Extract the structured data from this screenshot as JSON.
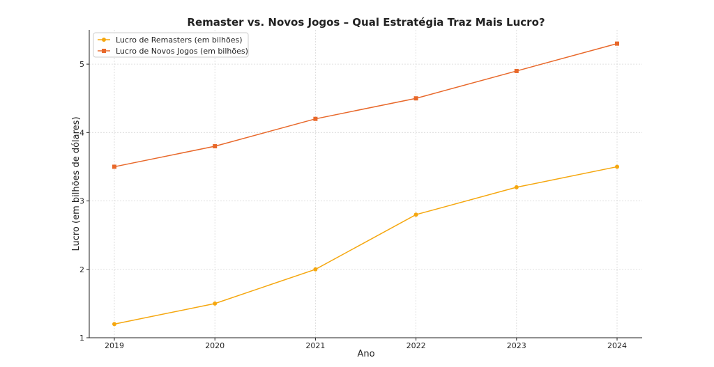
{
  "chart_data": {
    "type": "line",
    "title": "Remaster vs. Novos Jogos – Qual Estratégia Traz Mais Lucro?",
    "xlabel": "Ano",
    "ylabel": "Lucro (em bilhões de dólares)",
    "x": [
      2019,
      2020,
      2021,
      2022,
      2023,
      2024
    ],
    "x_tick_labels": [
      "2019",
      "2020",
      "2021",
      "2022",
      "2023",
      "2024"
    ],
    "ylim": [
      1,
      5.5
    ],
    "y_ticks": [
      1,
      2,
      3,
      4,
      5
    ],
    "y_tick_labels": [
      "1",
      "2",
      "3",
      "4",
      "5"
    ],
    "grid": true,
    "legend_position": "top-left",
    "series": [
      {
        "name": "Lucro de Remasters (em bilhões)",
        "values": [
          1.2,
          1.5,
          2.0,
          2.8,
          3.2,
          3.5
        ],
        "color": "#f5a70f",
        "marker": "circle"
      },
      {
        "name": "Lucro de Novos Jogos (em bilhões)",
        "values": [
          3.5,
          3.8,
          4.2,
          4.5,
          4.9,
          5.3
        ],
        "color": "#e8682a",
        "marker": "square"
      }
    ]
  }
}
